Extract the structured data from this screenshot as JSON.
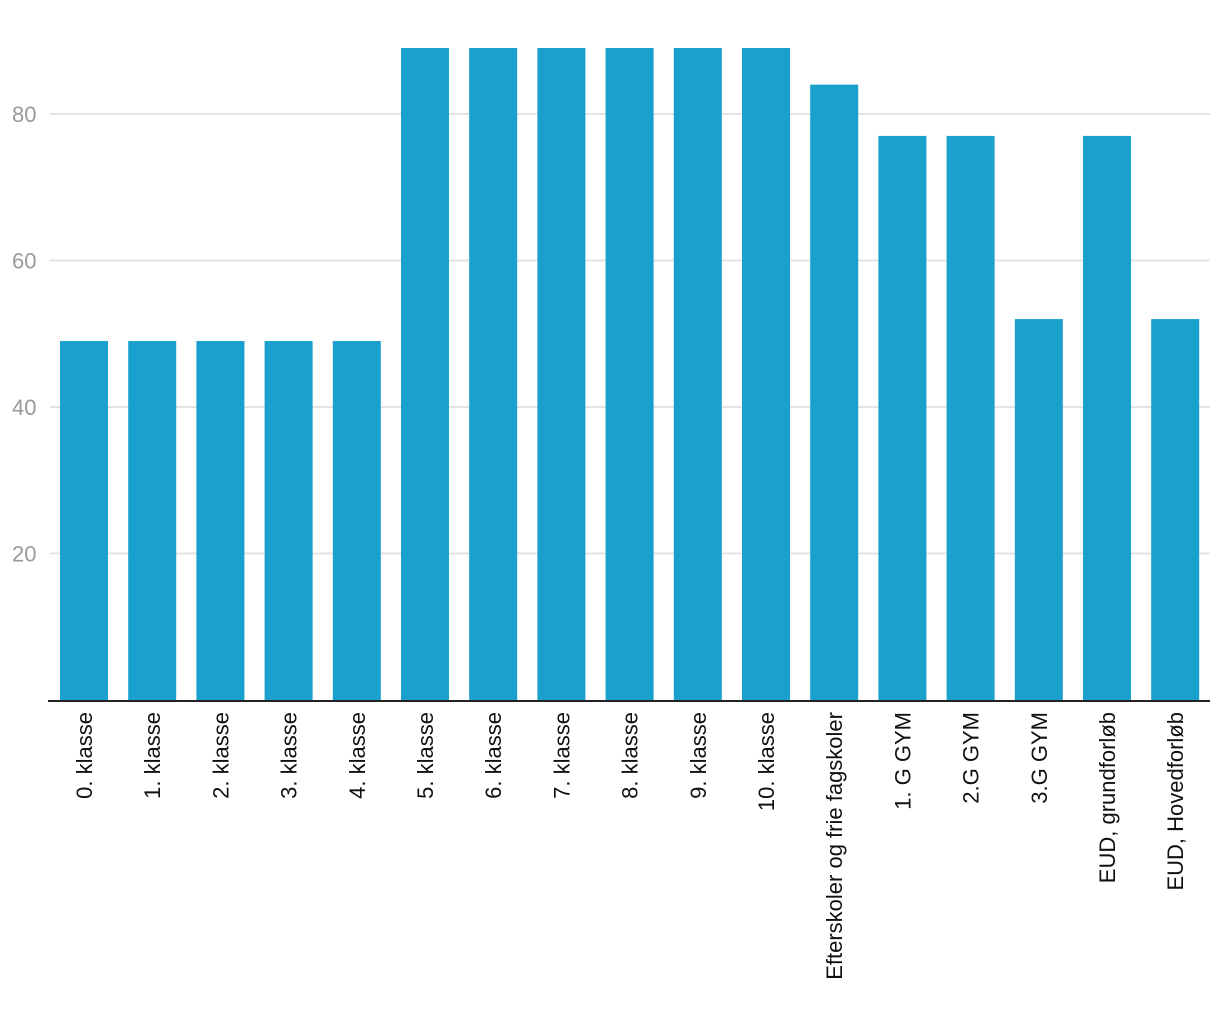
{
  "chart_data": {
    "type": "bar",
    "title": "",
    "xlabel": "",
    "ylabel": "",
    "ylim": [
      0,
      89
    ],
    "yticks": [
      20,
      40,
      60,
      80
    ],
    "grid": true,
    "bar_color": "#1aa0cc",
    "categories": [
      "0. klasse",
      "1. klasse",
      "2. klasse",
      "3. klasse",
      "4. klasse",
      "5. klasse",
      "6. klasse",
      "7. klasse",
      "8. klasse",
      "9. klasse",
      "10. klasse",
      "Efterskoler og frie fagskoler",
      "1. G GYM",
      "2.G GYM",
      "3.G GYM",
      "EUD, grundforløb",
      "EUD, Hovedforløb"
    ],
    "values": [
      49,
      49,
      49,
      49,
      49,
      89,
      89,
      89,
      89,
      89,
      89,
      84,
      77,
      77,
      52,
      77,
      52
    ]
  }
}
